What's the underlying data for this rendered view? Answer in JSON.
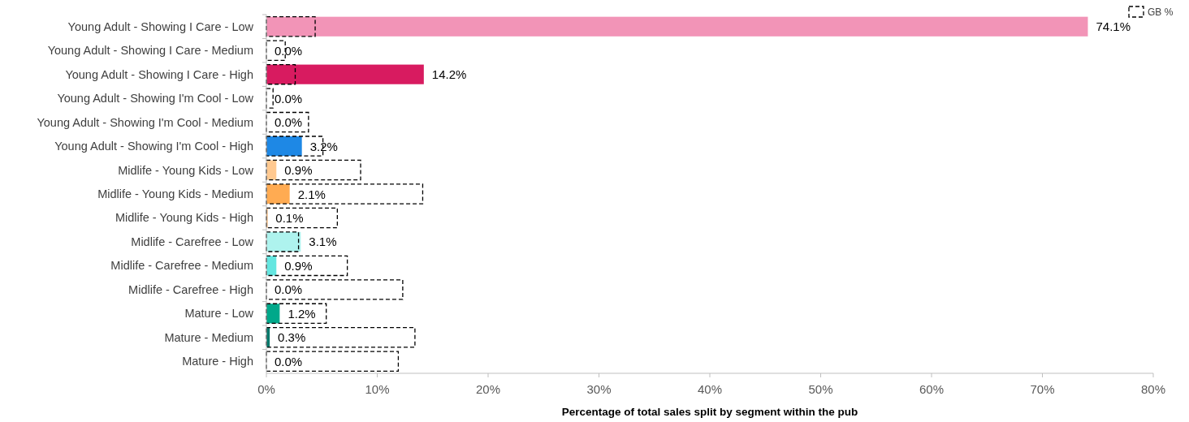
{
  "chart_data": {
    "type": "bar",
    "orientation": "horizontal",
    "xlabel": "Percentage of total sales split by segment within the pub",
    "categories": [
      "Young Adult - Showing I Care - Low",
      "Young Adult - Showing I Care - Medium",
      "Young Adult - Showing I Care - High",
      "Young Adult - Showing I'm Cool - Low",
      "Young Adult - Showing I'm Cool - Medium",
      "Young Adult - Showing I'm Cool - High",
      "Midlife - Young Kids - Low",
      "Midlife - Young Kids - Medium",
      "Midlife - Young Kids - High",
      "Midlife - Carefree - Low",
      "Midlife - Carefree - Medium",
      "Midlife - Carefree - High",
      "Mature - Low",
      "Mature - Medium",
      "Mature - High"
    ],
    "series": [
      {
        "values": [
          74.1,
          0.0,
          14.2,
          0.0,
          0.0,
          3.2,
          0.9,
          2.1,
          0.1,
          3.1,
          0.9,
          0.0,
          1.2,
          0.3,
          0.0
        ],
        "colors": [
          "#f294b7",
          "#f294b7",
          "#d81b60",
          "#1e88e5",
          "#1e88e5",
          "#1e88e5",
          "#ffc990",
          "#ffab52",
          "#e58a2a",
          "#aef3ee",
          "#64e6e0",
          "#2cc7c0",
          "#00a88a",
          "#00796b",
          "#00796b"
        ],
        "value_labels": [
          "74.1%",
          "0.0%",
          "14.2%",
          "0.0%",
          "0.0%",
          "3.2%",
          "0.9%",
          "2.1%",
          "0.1%",
          "3.1%",
          "0.9%",
          "0.0%",
          "1.2%",
          "0.3%",
          "0.0%"
        ]
      },
      {
        "name": "GB %",
        "color": "#000000",
        "line_style": "dashed",
        "values": [
          4.4,
          1.7,
          2.6,
          0.6,
          3.8,
          5.1,
          8.5,
          14.1,
          6.4,
          2.9,
          7.3,
          12.3,
          5.4,
          13.4,
          11.9
        ]
      }
    ],
    "xlim": [
      0,
      80
    ],
    "xticks": [
      {
        "value": 0,
        "label": "0%"
      },
      {
        "value": 10,
        "label": "10%"
      },
      {
        "value": 20,
        "label": "20%"
      },
      {
        "value": 30,
        "label": "30%"
      },
      {
        "value": 40,
        "label": "40%"
      },
      {
        "value": 50,
        "label": "50%"
      },
      {
        "value": 60,
        "label": "60%"
      },
      {
        "value": 70,
        "label": "70%"
      },
      {
        "value": 80,
        "label": "80%"
      }
    ],
    "grid": false,
    "legend": "top right"
  }
}
